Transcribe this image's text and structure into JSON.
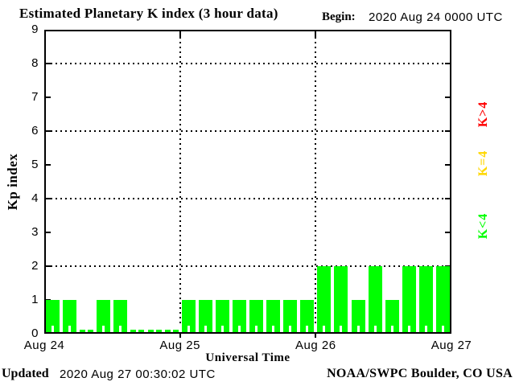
{
  "title": "Estimated Planetary K index (3 hour data)",
  "begin": {
    "label": "Begin:",
    "value": "2020 Aug 24 0000 UTC"
  },
  "y_axis": {
    "label": "Kp index",
    "ticks": [
      "0",
      "1",
      "2",
      "3",
      "4",
      "5",
      "6",
      "7",
      "8",
      "9"
    ]
  },
  "x_axis": {
    "label": "Universal Time",
    "ticks": [
      "Aug 24",
      "Aug 25",
      "Aug 26",
      "Aug 27"
    ]
  },
  "legend": [
    {
      "label": "K>4",
      "color": "#ff0000"
    },
    {
      "label": "K=4",
      "color": "#ffd700"
    },
    {
      "label": "K<4",
      "color": "#00ff00"
    }
  ],
  "footer": {
    "updated_label": "Updated",
    "updated_value": "2020 Aug 27 00:30:02 UTC",
    "credit": "NOAA/SWPC Boulder, CO USA"
  },
  "chart_data": {
    "type": "bar",
    "title": "Estimated Planetary K index (3 hour data)",
    "begin": "2020 Aug 24 0000 UTC",
    "xlabel": "Universal Time",
    "ylabel": "Kp index",
    "ylim": [
      0,
      9
    ],
    "interval_hours": 3,
    "grid_y": [
      2,
      4,
      6,
      8
    ],
    "day_categories": [
      "Aug 24",
      "Aug 25",
      "Aug 26"
    ],
    "values": [
      1,
      1,
      0,
      1,
      1,
      0,
      0,
      0,
      1,
      1,
      1,
      1,
      1,
      1,
      1,
      1,
      2,
      2,
      1,
      2,
      1,
      2,
      2,
      2
    ],
    "bar_color_rule": {
      "lt4": "#00ff00",
      "eq4": "#ffd700",
      "gt4": "#ff0000"
    },
    "legend_position": "right",
    "legend_entries": [
      "K>4",
      "K=4",
      "K<4"
    ]
  }
}
